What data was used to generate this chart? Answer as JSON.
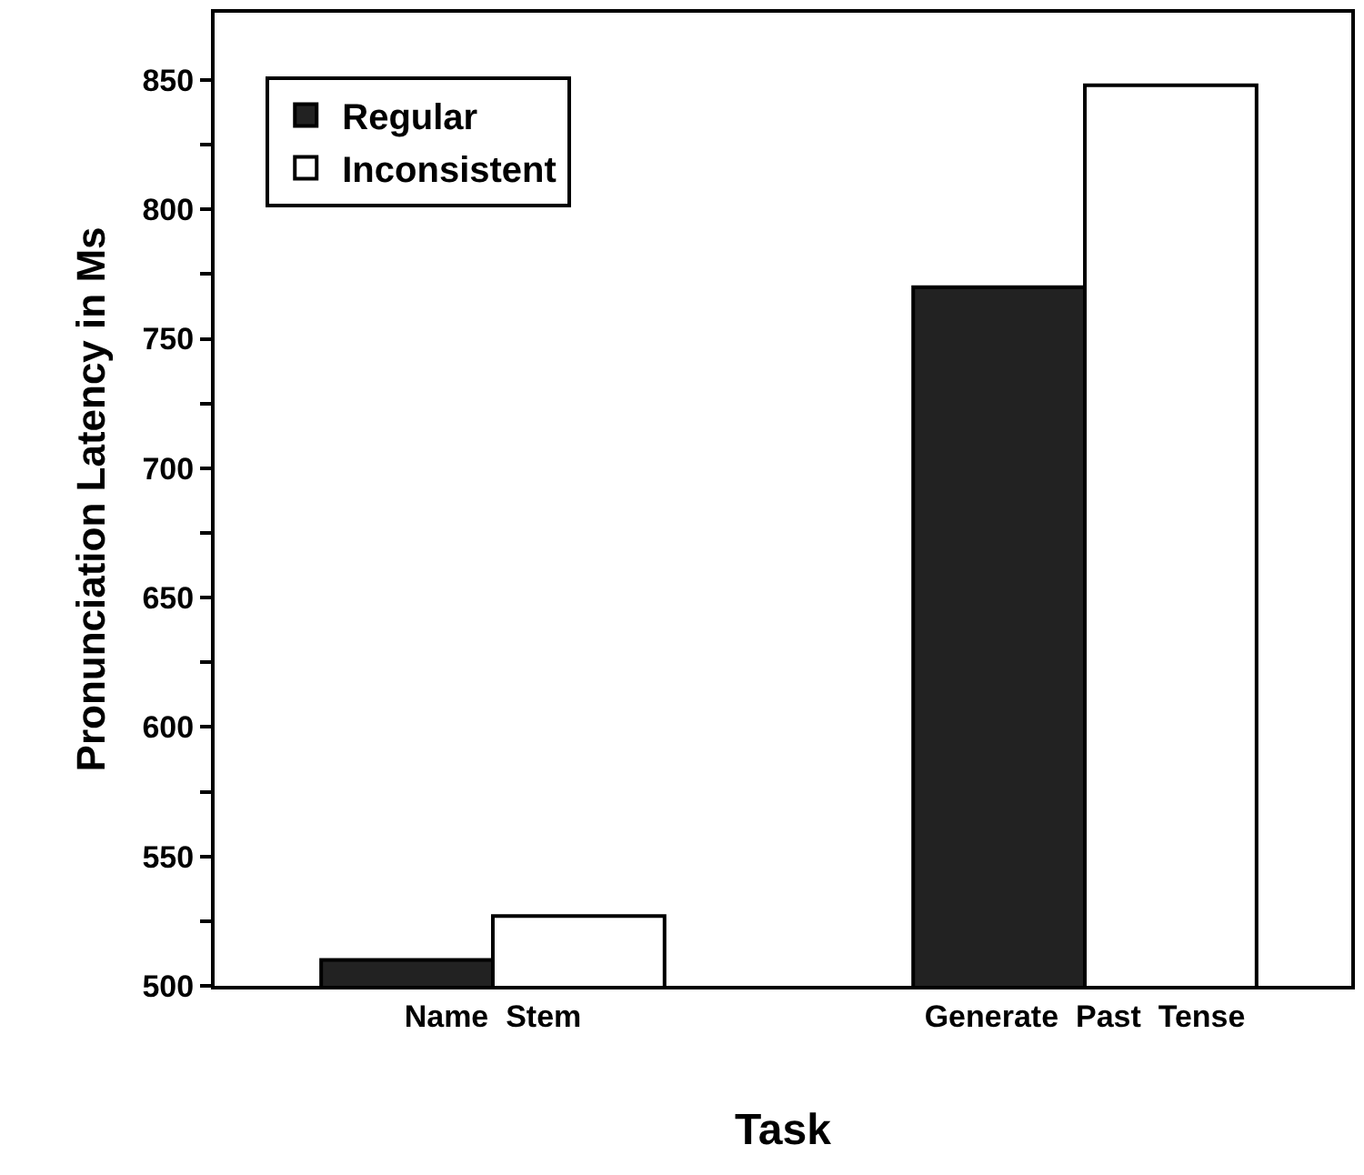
{
  "chart_data": {
    "type": "bar",
    "xlabel": "Task",
    "ylabel": "Pronunciation Latency in Ms",
    "categories": [
      "Name  Stem",
      "Generate  Past  Tense"
    ],
    "series": [
      {
        "name": "Regular",
        "color": "#222222",
        "values": [
          510,
          770
        ]
      },
      {
        "name": "Inconsistent",
        "color": "#ffffff",
        "values": [
          527,
          848
        ]
      }
    ],
    "ylim": [
      500,
      876
    ],
    "yticks": [
      500,
      {
        "value": 525,
        "label": null
      },
      550,
      {
        "value": 575,
        "label": null
      },
      600,
      {
        "value": 625,
        "label": null
      },
      650,
      {
        "value": 675,
        "label": null
      },
      700,
      {
        "value": 725,
        "label": null
      },
      750,
      {
        "value": 775,
        "label": null
      },
      800,
      {
        "value": 825,
        "label": null
      },
      850
    ],
    "legend": "top left"
  }
}
